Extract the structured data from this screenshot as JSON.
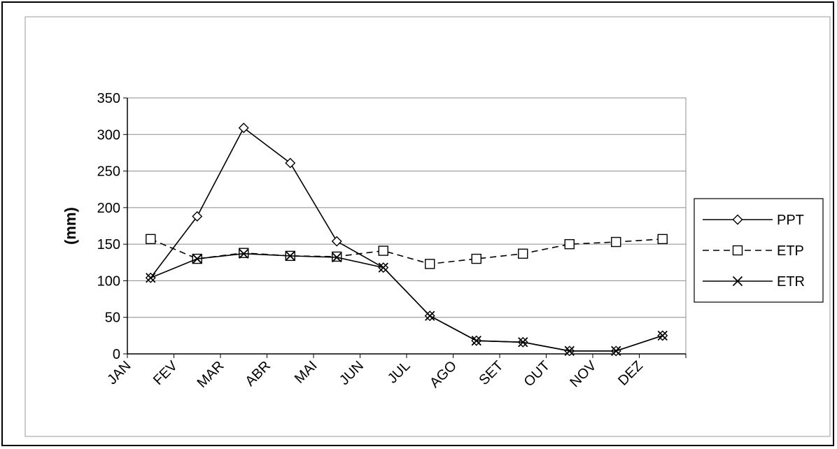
{
  "chart_data": {
    "type": "line",
    "categories": [
      "JAN",
      "FEV",
      "MAR",
      "ABR",
      "MAI",
      "JUN",
      "JUL",
      "AGO",
      "SET",
      "OUT",
      "NOV",
      "DEZ"
    ],
    "ylabel": "(mm)",
    "ylim": [
      0,
      350
    ],
    "yticks": [
      0,
      50,
      100,
      150,
      200,
      250,
      300,
      350
    ],
    "grid": true,
    "legend_position": "right",
    "series": [
      {
        "name": "PPT",
        "marker": "diamond",
        "dash": "solid",
        "color": "#000000",
        "values": [
          104,
          188,
          309,
          261,
          154,
          118,
          52,
          18,
          16,
          4,
          4,
          25
        ]
      },
      {
        "name": "ETP",
        "marker": "square",
        "dash": "dashed",
        "color": "#000000",
        "values": [
          157,
          130,
          138,
          134,
          133,
          141,
          123,
          130,
          137,
          150,
          153,
          157
        ]
      },
      {
        "name": "ETR",
        "marker": "x",
        "dash": "solid",
        "color": "#000000",
        "values": [
          104,
          130,
          137,
          134,
          132,
          118,
          52,
          18,
          16,
          4,
          4,
          25
        ]
      }
    ]
  }
}
